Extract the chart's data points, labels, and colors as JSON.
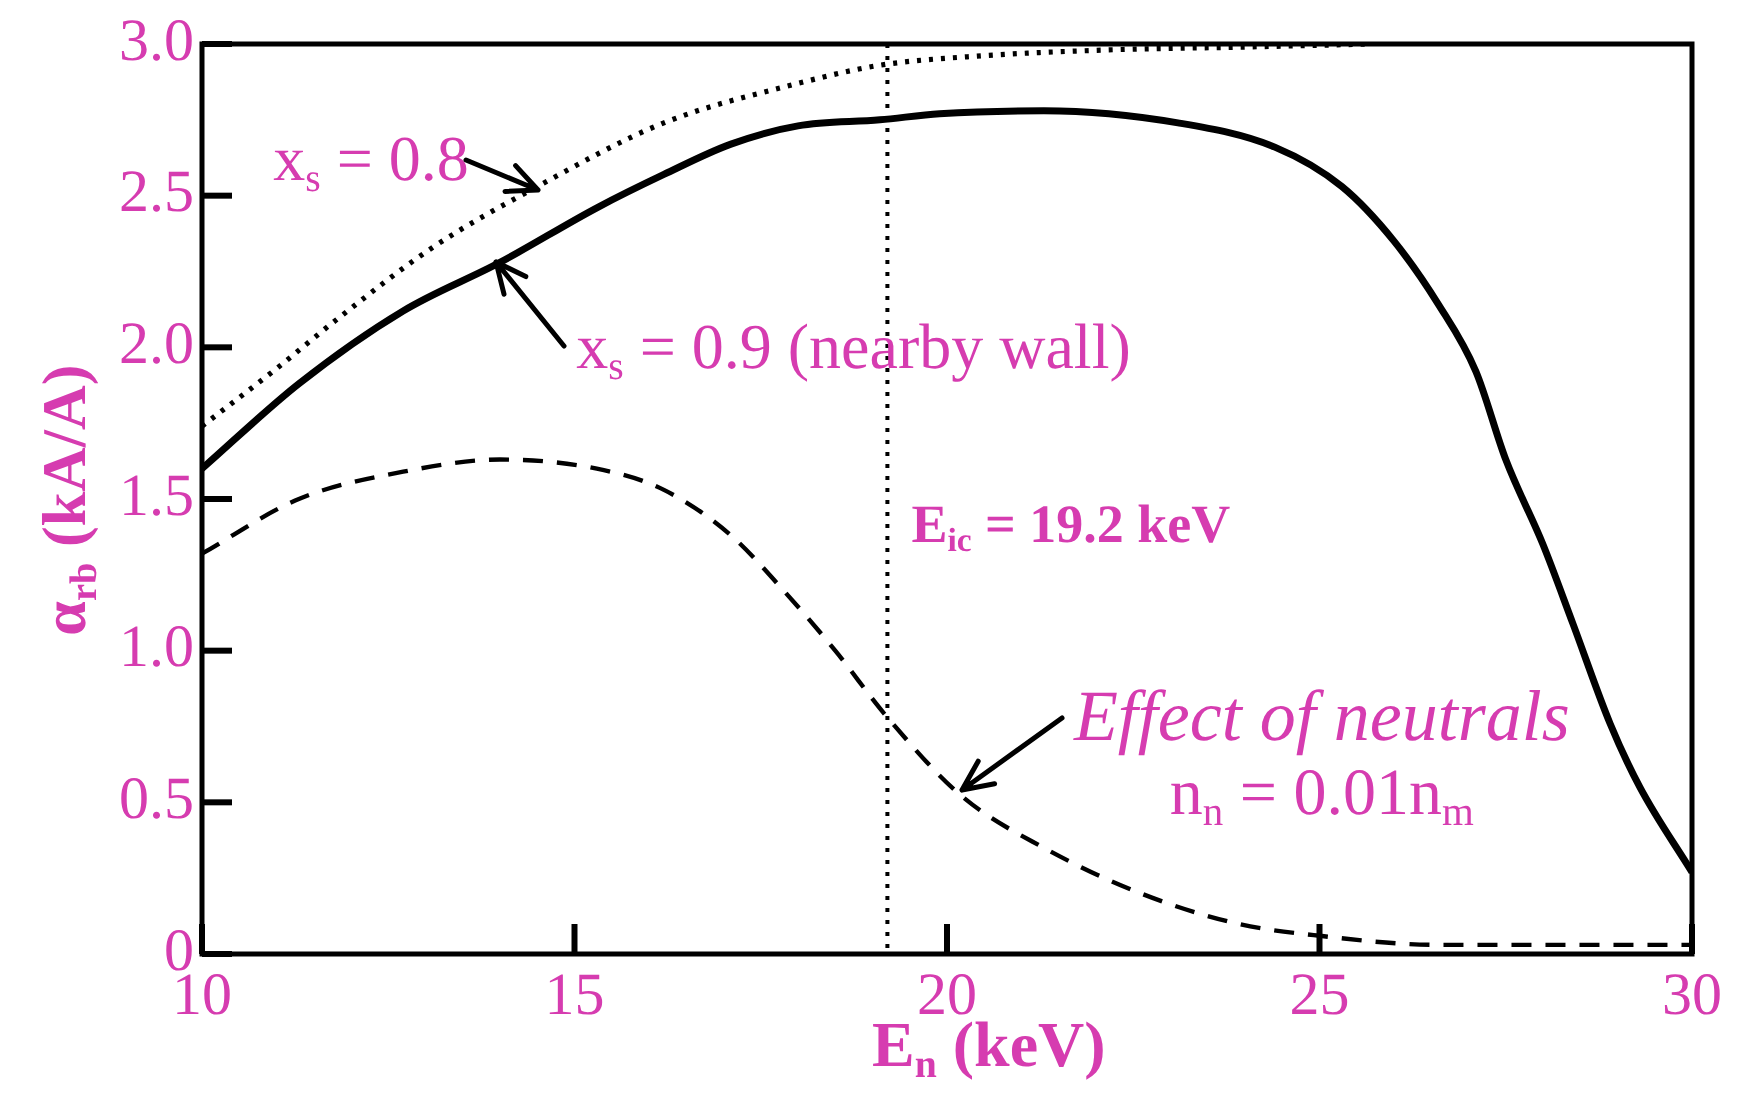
{
  "chart_data": {
    "type": "line",
    "xlabel": "E$_{n}$ (keV)",
    "ylabel": "α$_{rb}$ (kA/A)",
    "xlim": [
      10,
      30
    ],
    "xticks": [
      10,
      15,
      20,
      25,
      30
    ],
    "ylim": [
      0,
      3
    ],
    "yticks": [
      0,
      0.5,
      {
        "value": 1,
        "label": "1.0"
      },
      1.5,
      {
        "value": 2,
        "label": "2.0"
      },
      2.5,
      {
        "value": 3,
        "label": "3.0"
      }
    ],
    "series": [
      {
        "color": "#000000",
        "line_style": "dotted",
        "x": [
          10,
          11,
          11.8,
          13.1,
          14.5,
          16.2,
          18,
          19.1,
          20.4,
          22.1,
          24,
          25.7
        ],
        "values": [
          1.74,
          1.93,
          2.09,
          2.33,
          2.53,
          2.74,
          2.87,
          2.93,
          2.96,
          2.98,
          2.99,
          3.0
        ]
      },
      {
        "color": "#000000",
        "line_style": "solid",
        "x": [
          10,
          11.3,
          12.7,
          14,
          15.3,
          16.2,
          17.1,
          18,
          19.1,
          19.9,
          21.3,
          23.1,
          24.4,
          25.3,
          26,
          26.6,
          27.1,
          27.5,
          28,
          28.4,
          28.9,
          29.3,
          30
        ],
        "values": [
          1.6,
          1.88,
          2.12,
          2.28,
          2.46,
          2.57,
          2.67,
          2.73,
          2.75,
          2.77,
          2.78,
          2.74,
          2.66,
          2.53,
          2.35,
          2.14,
          1.92,
          1.63,
          1.35,
          1.09,
          0.76,
          0.55,
          0.27
        ]
      },
      {
        "color": "#000000",
        "line_style": "dashed",
        "x": [
          10,
          11.3,
          12.7,
          14,
          15.3,
          16.2,
          17.1,
          17.8,
          18.5,
          19.2,
          20.2,
          21.3,
          22.6,
          23.9,
          25,
          26.6,
          28,
          30
        ],
        "values": [
          1.32,
          1.5,
          1.59,
          1.63,
          1.6,
          1.53,
          1.38,
          1.2,
          1.0,
          0.78,
          0.52,
          0.35,
          0.2,
          0.1,
          0.06,
          0.03,
          0.03,
          0.03
        ]
      }
    ],
    "ref_lines": [
      {
        "axis": "x",
        "value": 19.2,
        "label": "E$_{ic}$ = 19.2 keV",
        "color": "#000000",
        "line_style": "dotted"
      }
    ],
    "annotations": [
      {
        "text": "x$_{s}$ = 0.8",
        "x": 14.5,
        "y": 2.52
      },
      {
        "text": "x$_{s}$ = 0.9 (nearby wall)",
        "x": 13.95,
        "y": 2.28
      },
      {
        "text": "Effect of neutrals\nn$_{n}$ = 0.01n$_{m}$",
        "x": 20.2,
        "y": 0.54
      }
    ]
  }
}
